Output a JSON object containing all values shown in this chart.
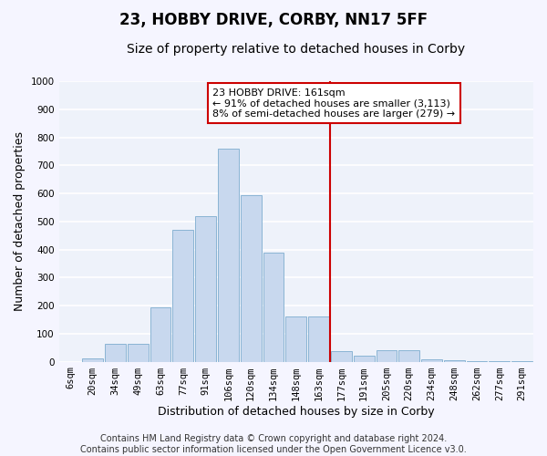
{
  "title": "23, HOBBY DRIVE, CORBY, NN17 5FF",
  "subtitle": "Size of property relative to detached houses in Corby",
  "xlabel": "Distribution of detached houses by size in Corby",
  "ylabel": "Number of detached properties",
  "categories": [
    "6sqm",
    "20sqm",
    "34sqm",
    "49sqm",
    "63sqm",
    "77sqm",
    "91sqm",
    "106sqm",
    "120sqm",
    "134sqm",
    "148sqm",
    "163sqm",
    "177sqm",
    "191sqm",
    "205sqm",
    "220sqm",
    "234sqm",
    "248sqm",
    "262sqm",
    "277sqm",
    "291sqm"
  ],
  "values": [
    0,
    12,
    65,
    65,
    195,
    470,
    520,
    760,
    595,
    390,
    160,
    160,
    38,
    20,
    40,
    40,
    8,
    5,
    3,
    3,
    3
  ],
  "bar_color": "#c8d8ee",
  "bar_edge_color": "#8ab4d4",
  "vline_x": 11.5,
  "vline_color": "#cc0000",
  "annotation_text": "23 HOBBY DRIVE: 161sqm\n← 91% of detached houses are smaller (3,113)\n8% of semi-detached houses are larger (279) →",
  "annotation_box_color": "#ffffff",
  "annotation_box_edge_color": "#cc0000",
  "ylim": [
    0,
    1000
  ],
  "yticks": [
    0,
    100,
    200,
    300,
    400,
    500,
    600,
    700,
    800,
    900,
    1000
  ],
  "bg_color": "#eef2fa",
  "grid_color": "#ffffff",
  "footer": "Contains HM Land Registry data © Crown copyright and database right 2024.\nContains public sector information licensed under the Open Government Licence v3.0.",
  "title_fontsize": 12,
  "subtitle_fontsize": 10,
  "axis_label_fontsize": 9,
  "tick_fontsize": 7.5,
  "footer_fontsize": 7,
  "annotation_fontsize": 8
}
